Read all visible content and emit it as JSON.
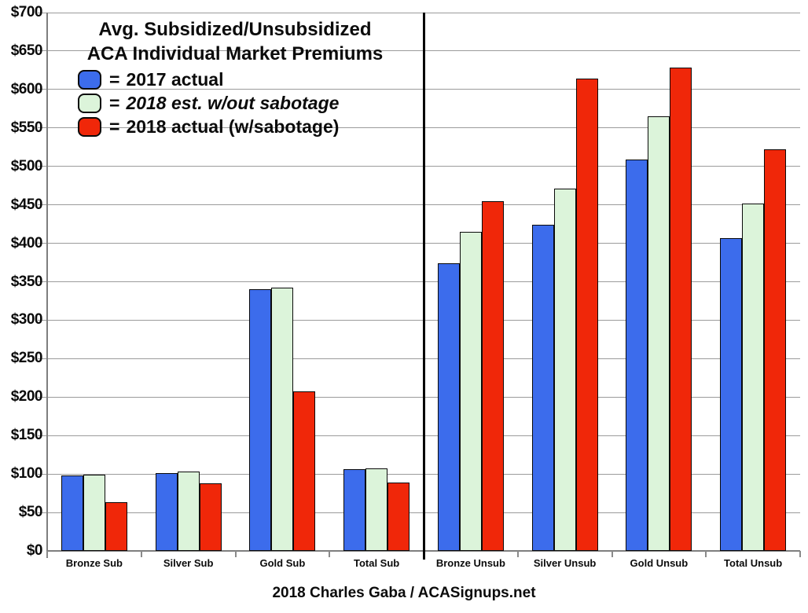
{
  "chart_data": {
    "type": "bar",
    "title_lines": [
      "Avg. Subsidized/Unsubsidized",
      "ACA Individual Market Premiums"
    ],
    "legend_equals": "=",
    "categories": [
      "Bronze Sub",
      "Silver Sub",
      "Gold Sub",
      "Total Sub",
      "Bronze Unsub",
      "Silver Unsub",
      "Gold Unsub",
      "Total Unsub"
    ],
    "series": [
      {
        "name": "2017 actual",
        "color": "#3c6cec",
        "legend_italic": false,
        "values": [
          98,
          101,
          340,
          106,
          374,
          424,
          509,
          407
        ]
      },
      {
        "name": "2018 est. w/out sabotage",
        "color": "#dcf4da",
        "legend_italic": true,
        "values": [
          99,
          103,
          342,
          107,
          415,
          471,
          565,
          452
        ]
      },
      {
        "name": "2018 actual (w/sabotage)",
        "color": "#f02709",
        "legend_italic": false,
        "values": [
          63,
          88,
          207,
          89,
          455,
          614,
          628,
          522
        ]
      }
    ],
    "ylim": [
      0,
      700
    ],
    "ytick_step": 50,
    "ytick_labels": [
      "$0",
      "$50",
      "$100",
      "$150",
      "$200",
      "$250",
      "$300",
      "$350",
      "$400",
      "$450",
      "$500",
      "$550",
      "$600",
      "$650",
      "$700"
    ],
    "grid": true,
    "legend_position": "top-left",
    "separator_after_category_index": 3,
    "caption": "2018 Charles Gaba / ACASignups.net"
  },
  "colors": {
    "bar_2017": "#3c6cec",
    "bar_2018_est": "#dcf4da",
    "bar_2018_actual": "#f02709",
    "gridline": "#9b9b9b",
    "axis": "#7e7e7e",
    "divider": "#000000",
    "text": "#0b0b0b",
    "background": "#ffffff"
  }
}
